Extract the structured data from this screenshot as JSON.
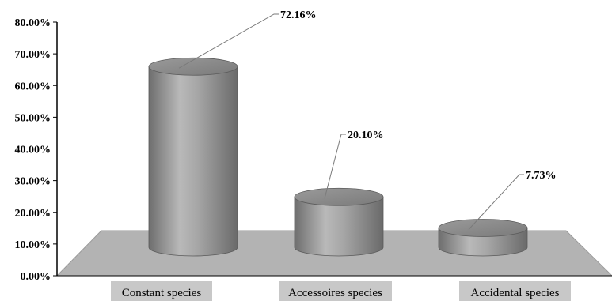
{
  "chart_data": {
    "type": "bar",
    "style": "3d-cylinder",
    "categories": [
      "Constant species",
      "Accessoires species",
      "Accidental species"
    ],
    "values": [
      72.16,
      20.1,
      7.73
    ],
    "data_labels": [
      "72.16%",
      "20.10%",
      "7.73%"
    ],
    "y_ticks": [
      "0.00%",
      "10.00%",
      "20.00%",
      "30.00%",
      "40.00%",
      "50.00%",
      "60.00%",
      "70.00%",
      "80.00%"
    ],
    "ylim": [
      0,
      80
    ],
    "grid": false,
    "legend": "none",
    "colors": {
      "bar": "#8c8c8c",
      "floor": "#b3b3b3",
      "category_box": "#c8c8c8",
      "axis": "#000000"
    }
  }
}
